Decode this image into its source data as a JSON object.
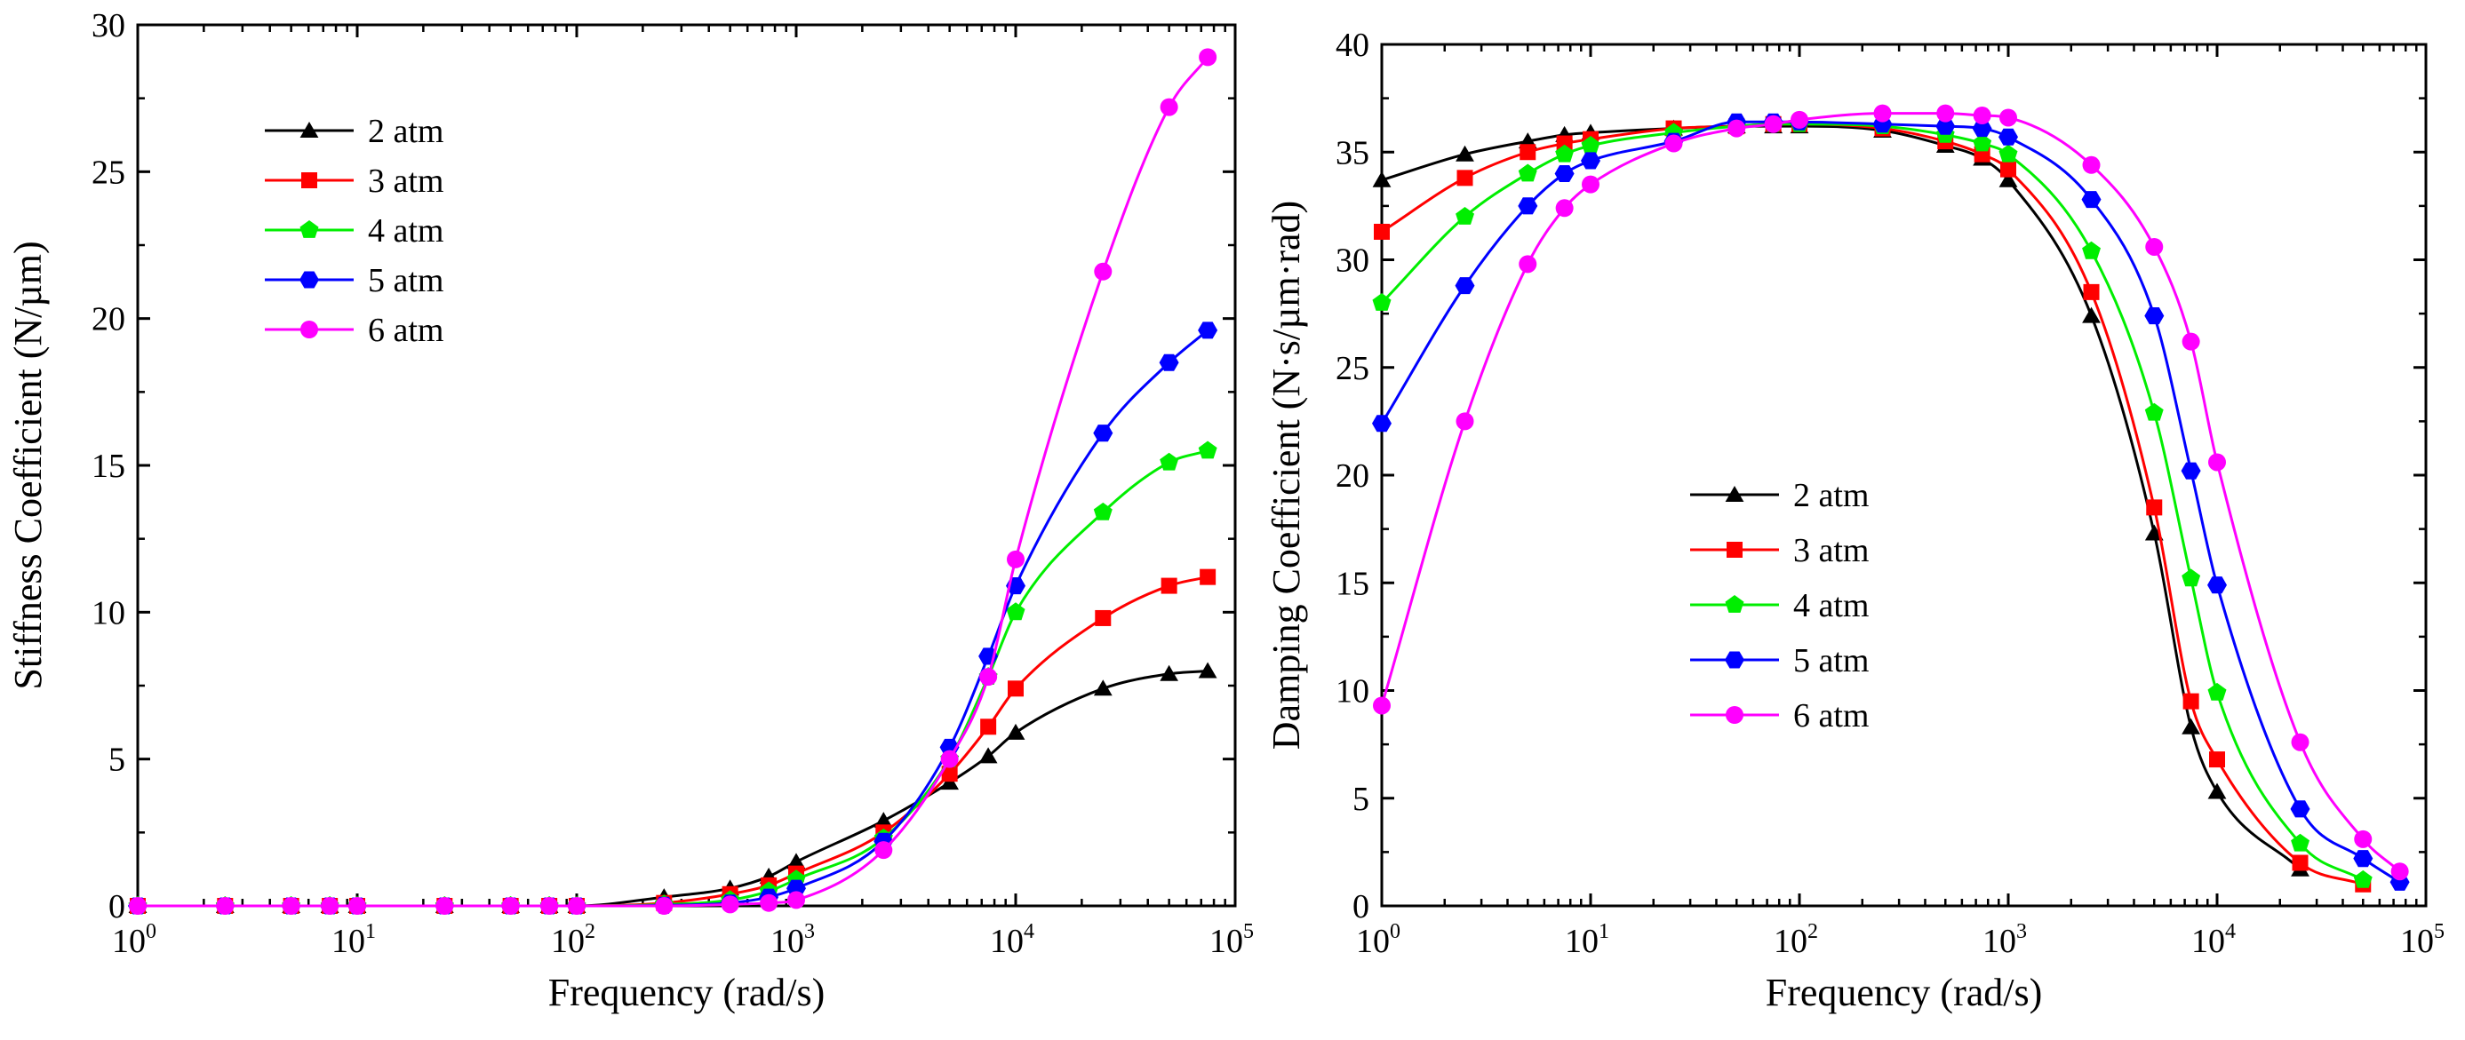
{
  "colors": {
    "2 atm": "#000000",
    "3 atm": "#ff0000",
    "4 atm": "#00ee00",
    "5 atm": "#0000ff",
    "6 atm": "#ff00ff"
  },
  "chart_data": [
    {
      "type": "line",
      "title": "",
      "xlabel": "Frequency (rad/s)",
      "ylabel": "Stiffness Coefficient (N/µm)",
      "xscale": "log",
      "xlim": [
        1,
        100000
      ],
      "ylim": [
        0,
        30
      ],
      "x_ticks": [
        {
          "base": "10",
          "exp": "0"
        },
        {
          "base": "10",
          "exp": "1"
        },
        {
          "base": "10",
          "exp": "2"
        },
        {
          "base": "10",
          "exp": "3"
        },
        {
          "base": "10",
          "exp": "4"
        },
        {
          "base": "10",
          "exp": "5"
        }
      ],
      "y_ticks": [
        "0",
        "5",
        "10",
        "15",
        "20",
        "25",
        "30"
      ],
      "legend_position": "top-left",
      "x": [
        1,
        2.5,
        5,
        7.5,
        10,
        25,
        50,
        75,
        100,
        250,
        500,
        750,
        1000,
        2500,
        5000,
        7500,
        10000,
        25000,
        50000,
        75000
      ],
      "series": [
        {
          "name": "2 atm",
          "marker": "triangle",
          "values": [
            0,
            0,
            0,
            0,
            0,
            0,
            0,
            0,
            0,
            0.3,
            0.6,
            1.0,
            1.5,
            2.9,
            4.2,
            5.1,
            5.9,
            7.4,
            7.9,
            8.0
          ]
        },
        {
          "name": "3 atm",
          "marker": "square",
          "values": [
            0,
            0,
            0,
            0,
            0,
            0,
            0,
            0,
            0,
            0.1,
            0.4,
            0.7,
            1.1,
            2.5,
            4.5,
            6.1,
            7.4,
            9.8,
            10.9,
            11.2
          ]
        },
        {
          "name": "4 atm",
          "marker": "pentagon",
          "values": [
            0,
            0,
            0,
            0,
            0,
            0,
            0,
            0,
            0,
            0.05,
            0.2,
            0.5,
            0.9,
            2.3,
            5.0,
            7.8,
            10.0,
            13.4,
            15.1,
            15.5
          ]
        },
        {
          "name": "5 atm",
          "marker": "hexagon",
          "values": [
            0,
            0,
            0,
            0,
            0,
            0,
            0,
            0,
            0,
            0.02,
            0.1,
            0.3,
            0.6,
            2.2,
            5.4,
            8.5,
            10.9,
            16.1,
            18.5,
            19.6
          ]
        },
        {
          "name": "6 atm",
          "marker": "circle",
          "values": [
            0,
            0,
            0,
            0,
            0,
            0,
            0,
            0,
            0,
            0,
            0.05,
            0.1,
            0.2,
            1.9,
            5.0,
            7.8,
            11.8,
            21.6,
            27.2,
            28.9
          ]
        }
      ]
    },
    {
      "type": "line",
      "title": "",
      "xlabel": "Frequency (rad/s)",
      "ylabel": "Damping Coefficient (N·s/µm·rad)",
      "xscale": "log",
      "xlim": [
        1,
        100000
      ],
      "ylim": [
        0,
        40
      ],
      "x_ticks": [
        {
          "base": "10",
          "exp": "0"
        },
        {
          "base": "10",
          "exp": "1"
        },
        {
          "base": "10",
          "exp": "2"
        },
        {
          "base": "10",
          "exp": "3"
        },
        {
          "base": "10",
          "exp": "4"
        },
        {
          "base": "10",
          "exp": "5"
        }
      ],
      "y_ticks": [
        "0",
        "5",
        "10",
        "15",
        "20",
        "25",
        "30",
        "35",
        "40"
      ],
      "legend_position": "center-left",
      "series": [
        {
          "name": "2 atm",
          "marker": "triangle",
          "x": [
            1,
            2.5,
            5,
            7.5,
            10,
            25,
            50,
            75,
            100,
            250,
            500,
            750,
            1000,
            2500,
            5000,
            7500,
            10000,
            25000
          ],
          "values": [
            33.7,
            34.9,
            35.5,
            35.8,
            35.9,
            36.1,
            36.2,
            36.2,
            36.2,
            36.0,
            35.3,
            34.7,
            33.7,
            27.4,
            17.3,
            8.3,
            5.3,
            1.7
          ]
        },
        {
          "name": "3 atm",
          "marker": "square",
          "x": [
            1,
            2.5,
            5,
            7.5,
            10,
            25,
            50,
            75,
            100,
            250,
            500,
            750,
            1000,
            2500,
            5000,
            7500,
            10000,
            25000,
            50000
          ],
          "values": [
            31.3,
            33.8,
            35.0,
            35.4,
            35.6,
            36.1,
            36.2,
            36.3,
            36.3,
            36.1,
            35.5,
            34.9,
            34.2,
            28.5,
            18.5,
            9.5,
            6.8,
            2.0,
            1.0
          ]
        },
        {
          "name": "4 atm",
          "marker": "pentagon",
          "x": [
            1,
            2.5,
            5,
            7.5,
            10,
            25,
            50,
            75,
            100,
            250,
            500,
            750,
            1000,
            2500,
            5000,
            7500,
            10000,
            25000,
            50000
          ],
          "values": [
            28.0,
            32.0,
            34.0,
            34.9,
            35.3,
            35.9,
            36.2,
            36.3,
            36.3,
            36.2,
            35.8,
            35.4,
            34.9,
            30.4,
            22.9,
            15.2,
            9.9,
            2.9,
            1.2
          ]
        },
        {
          "name": "5 atm",
          "marker": "hexagon",
          "x": [
            1,
            2.5,
            5,
            7.5,
            10,
            25,
            50,
            75,
            100,
            250,
            500,
            750,
            1000,
            2500,
            5000,
            7500,
            10000,
            25000,
            50000,
            75000
          ],
          "values": [
            22.4,
            28.8,
            32.5,
            34.0,
            34.6,
            35.5,
            36.4,
            36.4,
            36.4,
            36.3,
            36.2,
            36.1,
            35.7,
            32.8,
            27.4,
            20.2,
            14.9,
            4.5,
            2.2,
            1.1
          ]
        },
        {
          "name": "6 atm",
          "marker": "circle",
          "x": [
            1,
            2.5,
            5,
            7.5,
            10,
            25,
            50,
            75,
            100,
            250,
            500,
            750,
            1000,
            2500,
            5000,
            7500,
            10000,
            25000,
            50000,
            75000
          ],
          "values": [
            9.3,
            22.5,
            29.8,
            32.4,
            33.5,
            35.4,
            36.1,
            36.3,
            36.5,
            36.8,
            36.8,
            36.7,
            36.6,
            34.4,
            30.6,
            26.2,
            20.6,
            7.6,
            3.1,
            1.6
          ]
        }
      ]
    }
  ]
}
